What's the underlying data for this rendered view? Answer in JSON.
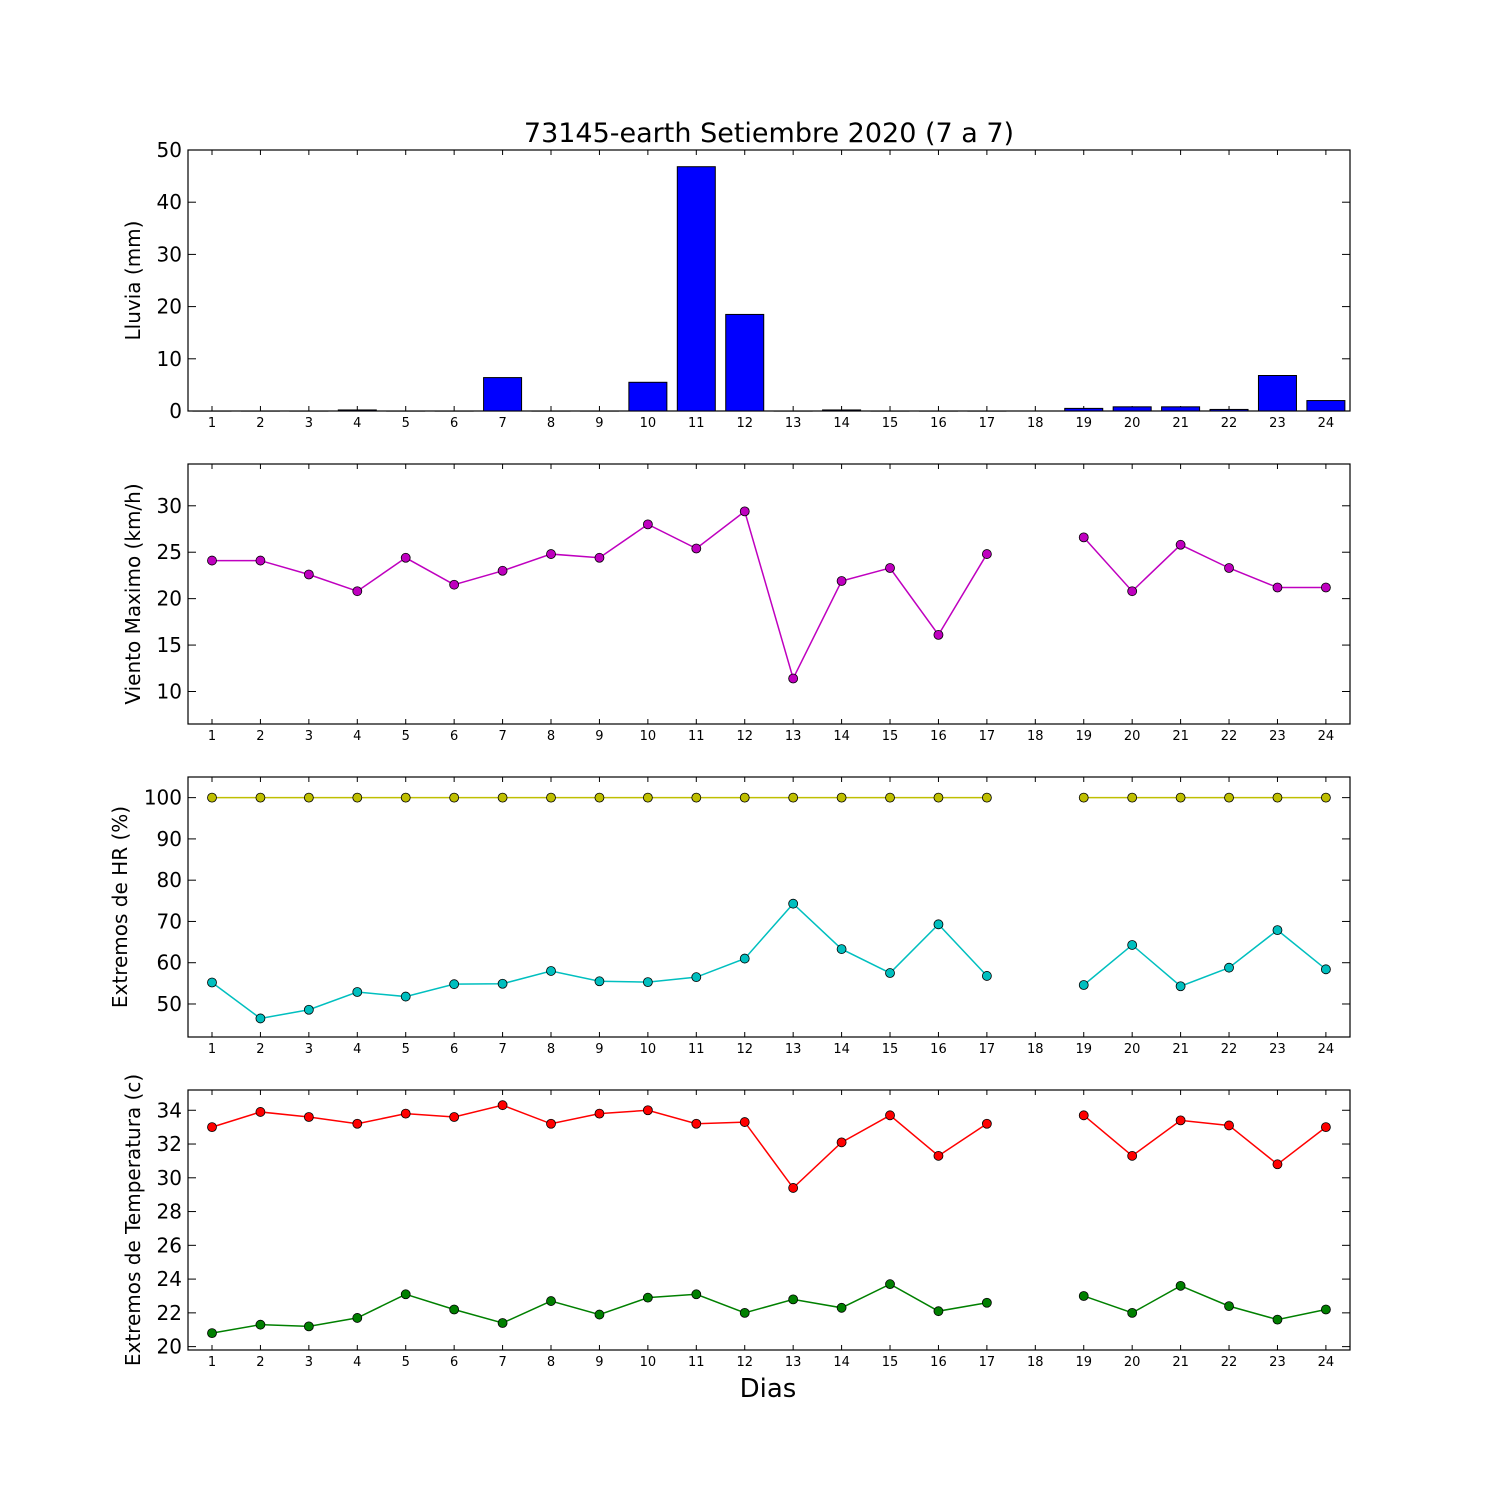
{
  "chart_data": [
    {
      "type": "bar",
      "title": "73145-earth Setiembre 2020  (7 a 7)",
      "ylabel": "Lluvia (mm)",
      "ylim": [
        0,
        50
      ],
      "yticks": [
        0,
        10,
        20,
        30,
        40,
        50
      ],
      "categories": [
        "1",
        "2",
        "3",
        "4",
        "5",
        "6",
        "7",
        "8",
        "9",
        "10",
        "11",
        "12",
        "13",
        "14",
        "15",
        "16",
        "17",
        "18",
        "19",
        "20",
        "21",
        "22",
        "23",
        "24"
      ],
      "values": [
        0,
        0,
        0,
        0.2,
        0,
        0,
        6.4,
        0,
        0,
        5.5,
        46.8,
        18.5,
        0,
        0.2,
        0,
        0,
        0,
        null,
        0.5,
        0.8,
        0.8,
        0.3,
        6.8,
        2.0
      ],
      "colors": {
        "bar": "#0000ff"
      }
    },
    {
      "type": "line",
      "ylabel": "Viento Maximo (km/h)",
      "ylim": [
        6.5,
        34.5
      ],
      "yticks": [
        10,
        15,
        20,
        25,
        30
      ],
      "categories": [
        "1",
        "2",
        "3",
        "4",
        "5",
        "6",
        "7",
        "8",
        "9",
        "10",
        "11",
        "12",
        "13",
        "14",
        "15",
        "16",
        "17",
        "18",
        "19",
        "20",
        "21",
        "22",
        "23",
        "24"
      ],
      "series": [
        {
          "values": [
            24.1,
            24.1,
            22.6,
            20.8,
            24.4,
            21.5,
            23.0,
            24.8,
            24.4,
            28.0,
            25.4,
            29.4,
            11.4,
            21.9,
            23.3,
            16.1,
            24.8,
            null,
            26.6,
            20.8,
            25.8,
            23.3,
            21.2,
            21.2
          ],
          "color": "#bf00bf"
        }
      ]
    },
    {
      "type": "line",
      "ylabel": "Extremos de HR (%)",
      "ylim": [
        42,
        105
      ],
      "yticks": [
        50,
        60,
        70,
        80,
        90,
        100
      ],
      "categories": [
        "1",
        "2",
        "3",
        "4",
        "5",
        "6",
        "7",
        "8",
        "9",
        "10",
        "11",
        "12",
        "13",
        "14",
        "15",
        "16",
        "17",
        "18",
        "19",
        "20",
        "21",
        "22",
        "23",
        "24"
      ],
      "series": [
        {
          "values": [
            100,
            100,
            100,
            100,
            100,
            100,
            100,
            100,
            100,
            100,
            100,
            100,
            100,
            100,
            100,
            100,
            100,
            null,
            100,
            100,
            100,
            100,
            100,
            100
          ],
          "color": "#bfbf00"
        },
        {
          "values": [
            55.2,
            46.5,
            48.6,
            52.9,
            51.8,
            54.8,
            54.9,
            58.0,
            55.5,
            55.3,
            56.5,
            61.0,
            74.3,
            63.3,
            57.5,
            69.3,
            56.8,
            null,
            54.6,
            64.3,
            54.3,
            58.8,
            67.9,
            58.4
          ],
          "color": "#00bfbf"
        }
      ]
    },
    {
      "type": "line",
      "ylabel": "Extremos de Temperatura (c)",
      "xlabel": "Dias",
      "ylim": [
        19.8,
        35.2
      ],
      "yticks": [
        20,
        22,
        24,
        26,
        28,
        30,
        32,
        34
      ],
      "categories": [
        "1",
        "2",
        "3",
        "4",
        "5",
        "6",
        "7",
        "8",
        "9",
        "10",
        "11",
        "12",
        "13",
        "14",
        "15",
        "16",
        "17",
        "18",
        "19",
        "20",
        "21",
        "22",
        "23",
        "24"
      ],
      "series": [
        {
          "values": [
            33.0,
            33.9,
            33.6,
            33.2,
            33.8,
            33.6,
            34.3,
            33.2,
            33.8,
            34.0,
            33.2,
            33.3,
            29.4,
            32.1,
            33.7,
            31.3,
            33.2,
            null,
            33.7,
            31.3,
            33.4,
            33.1,
            30.8,
            33.0
          ],
          "color": "#ff0000"
        },
        {
          "values": [
            20.8,
            21.3,
            21.2,
            21.7,
            23.1,
            22.2,
            21.4,
            22.7,
            21.9,
            22.9,
            23.1,
            22.0,
            22.8,
            22.3,
            23.7,
            22.1,
            22.6,
            null,
            23.0,
            22.0,
            23.6,
            22.4,
            21.6,
            22.2
          ],
          "color": "#008000"
        }
      ]
    }
  ]
}
